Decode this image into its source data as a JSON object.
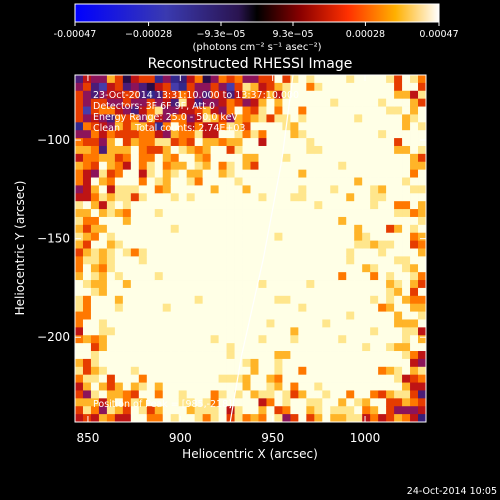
{
  "chart_data": {
    "type": "heatmap",
    "title": "Reconstructed RHESSI Image",
    "xlabel": "Heliocentric X (arcsec)",
    "ylabel": "Heliocentric Y (arcsec)",
    "xlim": [
      843,
      1033
    ],
    "ylim": [
      -243,
      -67
    ],
    "x_ticks": [
      850,
      900,
      950,
      1000
    ],
    "y_ticks": [
      -100,
      -150,
      -200
    ],
    "colorbar": {
      "label": "(photons cm⁻² s⁻¹ asec⁻²)",
      "min": -0.00047,
      "max": 0.00047,
      "tick_labels": [
        "-0.00047",
        "−0.00028",
        "−9.3e−05",
        "9.3e−05",
        "0.00028",
        "0.00047"
      ],
      "tick_values": [
        -0.00047,
        -0.00028,
        -9.3e-05,
        9.3e-05,
        0.00028,
        0.00047
      ]
    },
    "annotations": [
      "23-Oct-2014 13:31:10.000 to 13:37:10.000",
      "Detectors: 3F 6F 9F, Att 0",
      "Energy Range: 25.0 - 50.0 keV",
      "Clean     Total counts: 2.74E+03"
    ],
    "peak_label": "Position of Peak = [985,-218]",
    "peak": [
      985,
      -218
    ],
    "limb_curve": [
      [
        961,
        -67
      ],
      [
        955,
        -110
      ],
      [
        945,
        -160
      ],
      [
        933,
        -210
      ],
      [
        927,
        -243
      ]
    ],
    "grid": false
  },
  "footer": {
    "timestamp": "24-Oct-2014 10:05"
  }
}
